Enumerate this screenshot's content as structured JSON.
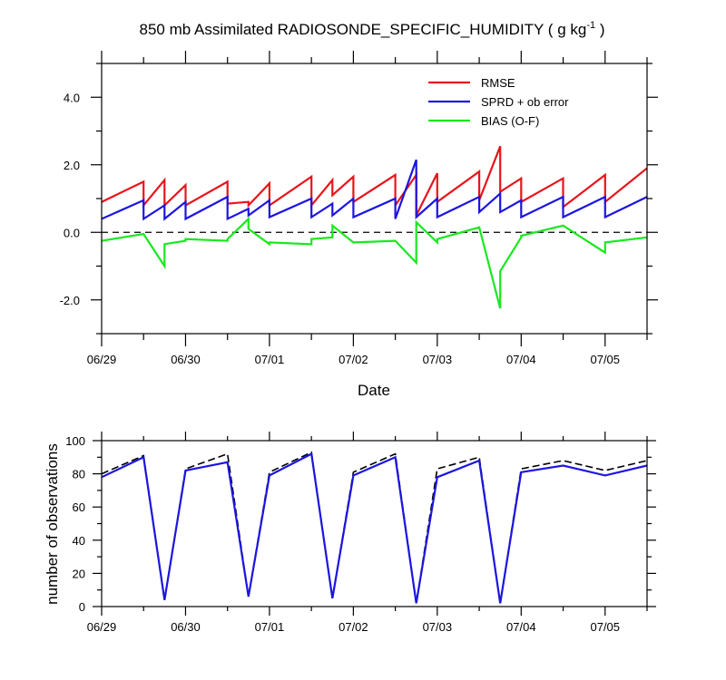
{
  "chart_data": [
    {
      "type": "line",
      "title": "850 mb Assimilated RADIOSONDE_SPECIFIC_HUMIDITY ( g kg",
      "title_superscript": "-1",
      "title_end": " )",
      "xlabel": "Date",
      "ylabel": "",
      "x_ticklabels": [
        "06/29",
        "06/30",
        "07/01",
        "07/02",
        "07/03",
        "07/04",
        "07/05"
      ],
      "x_unit": "day",
      "xlim": [
        0,
        6.5
      ],
      "ylim": [
        -3,
        5
      ],
      "y_ticks": [
        -2,
        0,
        2,
        4
      ],
      "y_ticklabels": [
        "-2.0",
        "0.0",
        "2.0",
        "4.0"
      ],
      "zero_line": "dashed",
      "legend_position": "top-right",
      "segment_breaks": true,
      "series": [
        {
          "name": "RMSE",
          "color": "#e8141b",
          "x": [
            0,
            0.5,
            0.5,
            0.75,
            0.75,
            1,
            1,
            1.5,
            1.5,
            1.75,
            1.75,
            2,
            2,
            2.5,
            2.5,
            2.75,
            2.75,
            3,
            3,
            3.5,
            3.5,
            3.75,
            3.75,
            4,
            4,
            4.5,
            4.5,
            4.75,
            4.75,
            5,
            5,
            5.5,
            5.5,
            6,
            6,
            6.5
          ],
          "y": [
            0.9,
            1.5,
            0.8,
            1.55,
            0.8,
            1.4,
            0.8,
            1.5,
            0.85,
            0.9,
            0.8,
            1.45,
            0.8,
            1.65,
            0.8,
            1.55,
            1.1,
            1.65,
            0.9,
            1.7,
            0.8,
            1.7,
            0.5,
            1.75,
            0.9,
            1.8,
            0.95,
            2.55,
            1.2,
            1.6,
            0.9,
            1.6,
            0.75,
            1.7,
            0.9,
            1.9
          ]
        },
        {
          "name": "SPRD + ob error",
          "color": "#1c15e0",
          "x": [
            0,
            0.5,
            0.5,
            0.75,
            0.75,
            1,
            1,
            1.5,
            1.5,
            1.75,
            1.75,
            2,
            2,
            2.5,
            2.5,
            2.75,
            2.75,
            3,
            3,
            3.5,
            3.5,
            3.75,
            3.75,
            4,
            4,
            4.5,
            4.5,
            4.75,
            4.75,
            5,
            5,
            5.5,
            5.5,
            6,
            6,
            6.5
          ],
          "y": [
            0.4,
            0.95,
            0.4,
            0.8,
            0.4,
            0.9,
            0.4,
            1.05,
            0.4,
            0.7,
            0.5,
            0.95,
            0.45,
            1.0,
            0.45,
            0.85,
            0.5,
            1.0,
            0.45,
            1.0,
            0.4,
            2.15,
            0.45,
            1.0,
            0.45,
            1.05,
            0.6,
            1.15,
            0.6,
            0.95,
            0.45,
            1.05,
            0.45,
            1.05,
            0.45,
            1.05
          ]
        },
        {
          "name": "BIAS (O-F)",
          "color": "#19e81f",
          "x": [
            0,
            0.5,
            0.5,
            0.75,
            0.75,
            1,
            1,
            1.5,
            1.5,
            1.75,
            1.75,
            2,
            2,
            2.5,
            2.5,
            2.75,
            2.75,
            3,
            3,
            3.5,
            3.5,
            3.75,
            3.75,
            4,
            4,
            4.5,
            4.5,
            4.75,
            4.75,
            5,
            5,
            5.5,
            5.5,
            6,
            6,
            6.5
          ],
          "y": [
            -0.25,
            -0.05,
            -0.05,
            -1.0,
            -0.35,
            -0.25,
            -0.2,
            -0.25,
            -0.2,
            0.4,
            0.1,
            -0.35,
            -0.3,
            -0.35,
            -0.2,
            -0.15,
            0.2,
            -0.3,
            -0.3,
            -0.25,
            -0.25,
            -0.9,
            0.3,
            -0.3,
            -0.2,
            0.15,
            0.15,
            -2.25,
            -1.15,
            -0.15,
            -0.1,
            0.2,
            0.2,
            -0.6,
            -0.3,
            -0.15
          ]
        }
      ]
    },
    {
      "type": "line",
      "title": "",
      "xlabel": "",
      "ylabel": "number of observations",
      "x_ticklabels": [
        "06/29",
        "06/30",
        "07/01",
        "07/02",
        "07/03",
        "07/04",
        "07/05"
      ],
      "x_unit": "day",
      "xlim": [
        0,
        6.5
      ],
      "ylim": [
        0,
        100
      ],
      "y_ticks": [
        0,
        20,
        40,
        60,
        80,
        100
      ],
      "y_ticklabels": [
        "0",
        "20",
        "40",
        "60",
        "80",
        "100"
      ],
      "series": [
        {
          "color": "#000000",
          "dashed": true,
          "x": [
            0,
            0.5,
            0.75,
            1,
            1.5,
            1.75,
            2,
            2.5,
            2.75,
            3,
            3.5,
            3.75,
            4,
            4.5,
            4.75,
            5,
            5.5,
            6,
            6.5
          ],
          "y": [
            80,
            91,
            4,
            83,
            92,
            6,
            81,
            93,
            5,
            81,
            92,
            2,
            83,
            90,
            2,
            83,
            88,
            82,
            88
          ]
        },
        {
          "color": "#1c15e0",
          "dashed": false,
          "x": [
            0,
            0.5,
            0.75,
            1,
            1.5,
            1.75,
            2,
            2.5,
            2.75,
            3,
            3.5,
            3.75,
            4,
            4.5,
            4.75,
            5,
            5.5,
            6,
            6.5
          ],
          "y": [
            78,
            90,
            4,
            82,
            87,
            6,
            79,
            92,
            5,
            79,
            90,
            2,
            78,
            88,
            2,
            81,
            85,
            79,
            85
          ]
        }
      ]
    }
  ]
}
